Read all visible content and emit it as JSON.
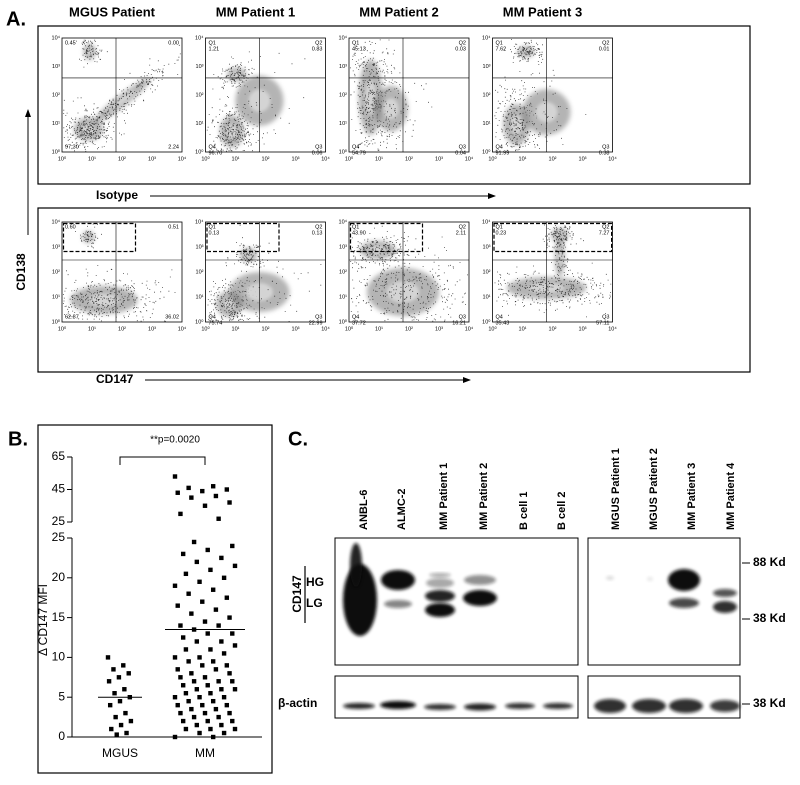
{
  "panel_a": {
    "label": "A.",
    "columns": [
      "MGUS Patient",
      "MM Patient 1",
      "MM Patient 2",
      "MM Patient 3"
    ],
    "tick_labels": [
      "10⁰",
      "10¹",
      "10²",
      "10³",
      "10⁴"
    ],
    "x_axis_top": "Isotype",
    "x_axis_bottom": "CD147",
    "y_axis": "CD138",
    "rows": [
      [
        [
          {
            "value": "0.45"
          },
          {
            "value": "0.00"
          },
          {
            "value": "97.30"
          },
          {
            "value": "2.24"
          }
        ],
        [
          {
            "label": "Q1",
            "value": "1.21"
          },
          {
            "label": "Q2",
            "value": "0.83"
          },
          {
            "label": "Q4",
            "value": "96.70"
          },
          {
            "label": "Q3",
            "value": "0.06"
          }
        ],
        [
          {
            "label": "Q1",
            "value": "45.13"
          },
          {
            "label": "Q2",
            "value": "0.03"
          },
          {
            "label": "Q4",
            "value": "54.79"
          },
          {
            "label": "Q3",
            "value": "0.04"
          }
        ],
        [
          {
            "label": "Q1",
            "value": "7.62"
          },
          {
            "label": "Q2",
            "value": "0.01"
          },
          {
            "label": "Q4",
            "value": "91.99"
          },
          {
            "label": "Q3",
            "value": "0.38"
          }
        ]
      ],
      [
        [
          {
            "value": "0.60"
          },
          {
            "value": "0.51"
          },
          {
            "value": "62.87"
          },
          {
            "value": "36.02"
          }
        ],
        [
          {
            "label": "Q1",
            "value": "0.13"
          },
          {
            "label": "Q2",
            "value": "0.13"
          },
          {
            "label": "Q4",
            "value": "75.74"
          },
          {
            "label": "Q3",
            "value": "22.99"
          }
        ],
        [
          {
            "label": "Q1",
            "value": "43.90"
          },
          {
            "label": "Q2",
            "value": "2.11"
          },
          {
            "label": "Q4",
            "value": "37.72"
          },
          {
            "label": "Q3",
            "value": "16.21"
          }
        ],
        [
          {
            "label": "Q1",
            "value": "0.23"
          },
          {
            "label": "Q2",
            "value": "7.27"
          },
          {
            "label": "Q4",
            "value": "35.43"
          },
          {
            "label": "Q3",
            "value": "57.11"
          }
        ]
      ]
    ]
  },
  "panel_b": {
    "label": "B.",
    "type": "scatter",
    "annotation": "**p=0.0020",
    "y_label": "Δ CD147 MFI",
    "categories": [
      "MGUS",
      "MM"
    ],
    "values": [
      [
        10,
        9,
        8.5,
        8,
        7.5,
        7,
        6,
        5.5,
        5,
        4.5,
        4,
        3,
        2.5,
        2,
        1.5,
        1,
        0.5,
        0.3
      ],
      [
        53,
        47,
        46,
        45,
        44,
        43,
        41,
        40,
        37,
        35,
        30,
        27,
        24.5,
        24,
        23.5,
        23,
        22.5,
        22,
        21.5,
        21,
        20.5,
        20,
        19.5,
        19,
        18.5,
        18,
        17.5,
        17,
        16.5,
        16,
        15.5,
        15,
        14.5,
        14,
        14,
        13.5,
        13,
        13,
        12.5,
        12,
        12,
        11.5,
        11,
        11,
        10.5,
        10,
        10,
        9.5,
        9.5,
        9,
        9,
        8.5,
        8.5,
        8,
        8,
        7.5,
        7.5,
        7,
        7,
        7,
        6.5,
        6.5,
        6,
        6,
        6,
        5.5,
        5.5,
        5,
        5,
        5,
        4.5,
        4.5,
        4,
        4,
        4,
        3.5,
        3.5,
        3,
        3,
        3,
        2.5,
        2.5,
        2,
        2,
        2,
        1.5,
        1.5,
        1,
        1,
        1,
        0.5,
        0.5,
        0,
        0
      ]
    ],
    "medians": [
      5,
      13.5
    ],
    "ylim": [
      0,
      25
    ],
    "yticks": [
      0,
      5,
      10,
      15,
      20,
      25
    ],
    "y_upper_lim": [
      25,
      65
    ],
    "y_upper_ticks": [
      25,
      45,
      65
    ]
  },
  "panel_c": {
    "label": "C.",
    "lanes_left": [
      "ANBL-6",
      "ALMC-2",
      "MM Patient 1",
      "MM Patient 2",
      "B cell 1",
      "B cell 2"
    ],
    "lanes_right": [
      "MGUS Patient 1",
      "MGUS Patient 2",
      "MM Patient 3",
      "MM Patient 4"
    ],
    "protein": "CD147",
    "bands": [
      "HG",
      "LG"
    ],
    "loading_control": "β-actin",
    "markers": [
      "88 Kd",
      "38 Kd",
      "38 Kd"
    ]
  }
}
